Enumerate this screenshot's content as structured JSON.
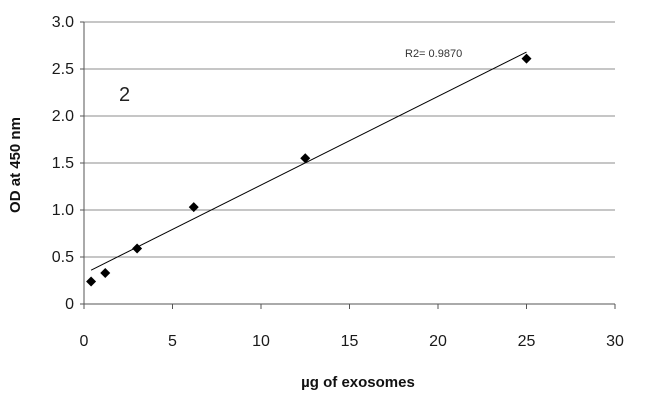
{
  "chart_data": {
    "type": "scatter",
    "panel_label": "2",
    "xlabel": "µg of exosomes",
    "ylabel": "OD at 450 nm",
    "xlim": [
      0,
      30
    ],
    "ylim": [
      0,
      3.0
    ],
    "x_ticks": [
      "0",
      "5",
      "10",
      "15",
      "20",
      "25",
      "30"
    ],
    "y_ticks": [
      "0",
      "0.5",
      "1.0",
      "1.5",
      "2.0",
      "2.5",
      "3.0"
    ],
    "grid": "horizontal",
    "series": [
      {
        "marker": "diamond",
        "color": "#000000",
        "points": [
          {
            "x": 0.4,
            "y": 0.24
          },
          {
            "x": 1.2,
            "y": 0.33
          },
          {
            "x": 3.0,
            "y": 0.59
          },
          {
            "x": 6.2,
            "y": 1.03
          },
          {
            "x": 12.5,
            "y": 1.55
          },
          {
            "x": 25.0,
            "y": 2.61
          }
        ]
      }
    ],
    "trendline": {
      "type": "linear",
      "x_start": 0.4,
      "y_start": 0.36,
      "x_end": 25.0,
      "y_end": 2.68,
      "color": "#000000",
      "label": "R2= 0.9870"
    }
  }
}
